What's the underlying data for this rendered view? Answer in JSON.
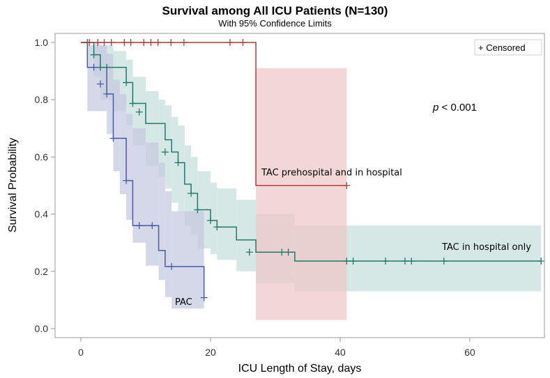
{
  "chart_data": {
    "type": "line",
    "subtype": "kaplan-meier step",
    "title": "Survival among All ICU Patients (N=130)",
    "subtitle": "With 95% Confidence Limits",
    "xlabel": "ICU Length of Stay, days",
    "ylabel": "Survival Probability",
    "xlim": [
      -4,
      72
    ],
    "ylim": [
      -0.02,
      1.04
    ],
    "xticks": [
      0,
      20,
      40,
      60
    ],
    "xtick_labels": [
      "0",
      "20",
      "40",
      "60"
    ],
    "yticks": [
      0.0,
      0.2,
      0.4,
      0.6,
      0.8,
      1.0
    ],
    "ytick_labels": [
      "0.0",
      "0.2",
      "0.4",
      "0.6",
      "0.8",
      "1.0"
    ],
    "grid": false,
    "legend": {
      "entries": [
        "+ Censored"
      ],
      "placement": "top-right"
    },
    "annotations": [
      {
        "text": "p < 0.001",
        "italic_part": "p",
        "rest": " < 0.001"
      }
    ],
    "series": [
      {
        "name": "PAC",
        "label": "PAC",
        "color": "#4b5ba6",
        "band_color": "#c5cbe0",
        "steps": [
          [
            0,
            1.0
          ],
          [
            1,
            0.913
          ],
          [
            4,
            0.82
          ],
          [
            5,
            0.665
          ],
          [
            7,
            0.517
          ],
          [
            8,
            0.36
          ],
          [
            11,
            0.36
          ],
          [
            12,
            0.273
          ],
          [
            13,
            0.217
          ],
          [
            19,
            0.217
          ],
          [
            19,
            0.108
          ]
        ],
        "censored": [
          [
            2,
            0.913
          ],
          [
            3,
            0.855
          ],
          [
            4,
            0.82
          ],
          [
            5,
            0.665
          ],
          [
            7,
            0.517
          ],
          [
            9,
            0.36
          ],
          [
            11,
            0.36
          ],
          [
            14,
            0.217
          ],
          [
            19,
            0.108
          ]
        ],
        "ci": [
          [
            1,
            0.99,
            0.76
          ],
          [
            4,
            0.96,
            0.68
          ],
          [
            5,
            0.87,
            0.55
          ],
          [
            6,
            0.82,
            0.47
          ],
          [
            7,
            0.75,
            0.38
          ],
          [
            8,
            0.7,
            0.3
          ],
          [
            10,
            0.65,
            0.22
          ],
          [
            12,
            0.58,
            0.17
          ],
          [
            13,
            0.48,
            0.11
          ],
          [
            14,
            0.41,
            0.07
          ],
          [
            19,
            0.41,
            0.07
          ]
        ],
        "end": 19
      },
      {
        "name": "TAC in hospital only",
        "label": "TAC in hospital only",
        "color": "#1f7a6c",
        "band_color": "#c8e0dc",
        "steps": [
          [
            0,
            1.0
          ],
          [
            2,
            0.957
          ],
          [
            3,
            0.913
          ],
          [
            5,
            0.913
          ],
          [
            7,
            0.86
          ],
          [
            8,
            0.787
          ],
          [
            10,
            0.717
          ],
          [
            12,
            0.717
          ],
          [
            13,
            0.66
          ],
          [
            14,
            0.617
          ],
          [
            15,
            0.58
          ],
          [
            16,
            0.505
          ],
          [
            17,
            0.473
          ],
          [
            18,
            0.415
          ],
          [
            20,
            0.378
          ],
          [
            21,
            0.355
          ],
          [
            24,
            0.31
          ],
          [
            27,
            0.267
          ],
          [
            33,
            0.236
          ],
          [
            71,
            0.236
          ]
        ],
        "censored": [
          [
            1,
            1.0
          ],
          [
            2,
            0.957
          ],
          [
            3,
            0.913
          ],
          [
            4,
            0.913
          ],
          [
            7,
            0.86
          ],
          [
            8,
            0.787
          ],
          [
            9,
            0.757
          ],
          [
            13,
            0.617
          ],
          [
            15,
            0.58
          ],
          [
            17,
            0.473
          ],
          [
            18,
            0.415
          ],
          [
            20,
            0.378
          ],
          [
            21,
            0.355
          ],
          [
            26,
            0.267
          ],
          [
            31,
            0.267
          ],
          [
            32,
            0.267
          ],
          [
            41,
            0.236
          ],
          [
            42,
            0.236
          ],
          [
            47,
            0.236
          ],
          [
            50,
            0.236
          ],
          [
            51,
            0.236
          ],
          [
            56,
            0.236
          ],
          [
            71,
            0.236
          ]
        ],
        "ci": [
          [
            2,
            1.0,
            0.88
          ],
          [
            3,
            0.99,
            0.8
          ],
          [
            5,
            0.97,
            0.76
          ],
          [
            7,
            0.94,
            0.71
          ],
          [
            8,
            0.88,
            0.64
          ],
          [
            10,
            0.83,
            0.57
          ],
          [
            12,
            0.8,
            0.53
          ],
          [
            13,
            0.78,
            0.49
          ],
          [
            14,
            0.74,
            0.44
          ],
          [
            15,
            0.71,
            0.41
          ],
          [
            16,
            0.64,
            0.36
          ],
          [
            17,
            0.6,
            0.33
          ],
          [
            18,
            0.55,
            0.28
          ],
          [
            20,
            0.51,
            0.26
          ],
          [
            21,
            0.49,
            0.24
          ],
          [
            24,
            0.45,
            0.2
          ],
          [
            27,
            0.4,
            0.16
          ],
          [
            33,
            0.36,
            0.13
          ],
          [
            71,
            0.36,
            0.13
          ]
        ],
        "end": 71
      },
      {
        "name": "TAC prehospital and in hospital",
        "label": "TAC prehospital and in hospital",
        "color": "#b03a3a",
        "band_color": "#efc8c8",
        "steps": [
          [
            0,
            1.0
          ],
          [
            27,
            1.0
          ],
          [
            27,
            0.5
          ],
          [
            41,
            0.5
          ]
        ],
        "censored": [
          [
            1.3,
            1.0
          ],
          [
            2.6,
            1.0
          ],
          [
            3.6,
            1.0
          ],
          [
            4.7,
            1.0
          ],
          [
            6.7,
            1.0
          ],
          [
            7.7,
            1.0
          ],
          [
            9.7,
            1.0
          ],
          [
            10.8,
            1.0
          ],
          [
            11.9,
            1.0
          ],
          [
            13.9,
            1.0
          ],
          [
            15.9,
            1.0
          ],
          [
            23,
            1.0
          ],
          [
            25,
            1.0
          ],
          [
            41,
            0.5
          ]
        ],
        "ci": [
          [
            27,
            0.91,
            0.03
          ],
          [
            41,
            0.91,
            0.03
          ]
        ],
        "end": 41
      }
    ]
  }
}
